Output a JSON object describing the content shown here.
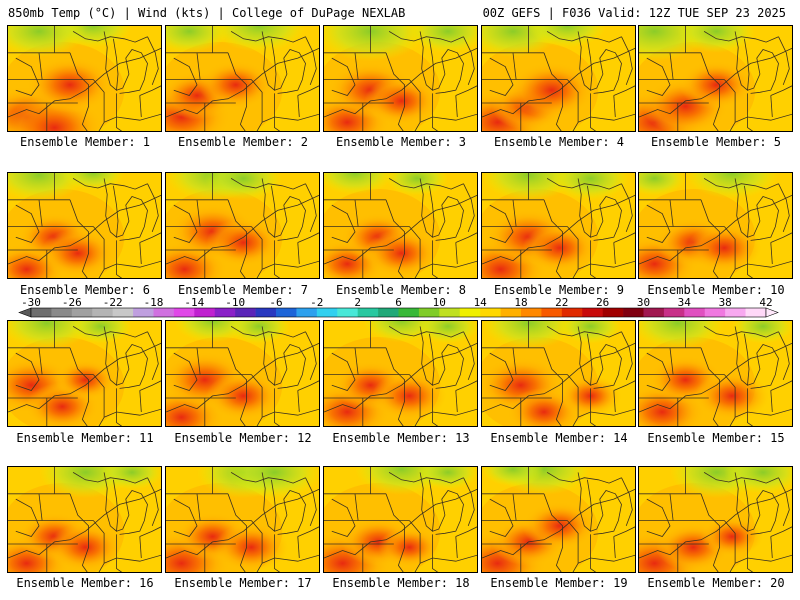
{
  "header": {
    "left": "850mb Temp (°C) | Wind (kts) | College of DuPage NEXLAB",
    "right": "00Z GEFS | F036 Valid: 12Z TUE SEP 23 2025"
  },
  "colorbar": {
    "tick_labels": [
      "-30",
      "-26",
      "-22",
      "-18",
      "-14",
      "-10",
      "-6",
      "-2",
      "2",
      "6",
      "10",
      "14",
      "18",
      "22",
      "26",
      "30",
      "34",
      "38",
      "42"
    ],
    "colors": [
      "#6e6e6e",
      "#8a8a8a",
      "#a0a0a0",
      "#b4b4b4",
      "#c8c8c8",
      "#bf9fdf",
      "#d070e0",
      "#e048e8",
      "#c020d0",
      "#8a20c8",
      "#5a24b8",
      "#2838c0",
      "#1c64d8",
      "#2ca0ee",
      "#30d0f0",
      "#48e8d8",
      "#28c8a0",
      "#20a878",
      "#38b838",
      "#80cc28",
      "#c0e020",
      "#f0f000",
      "#ffd800",
      "#ffb000",
      "#ff8800",
      "#f85a00",
      "#e02a00",
      "#c80a0a",
      "#a00000",
      "#800010",
      "#a01850",
      "#c83088",
      "#e050c0",
      "#f078e0",
      "#f8a8f0",
      "#ffd8f8"
    ]
  },
  "panels": [
    {
      "label": "Ensemble Member: 1",
      "warm": [
        [
          0.12,
          0.85,
          0.38
        ],
        [
          0.3,
          0.95,
          0.4
        ],
        [
          0.4,
          0.55,
          0.35
        ]
      ],
      "cool": [
        [
          0.55,
          0.0,
          0.25
        ],
        [
          0.2,
          0.05,
          0.3
        ]
      ]
    },
    {
      "label": "Ensemble Member: 2",
      "warm": [
        [
          0.1,
          0.85,
          0.4
        ],
        [
          0.2,
          0.65,
          0.3
        ],
        [
          0.45,
          0.55,
          0.3
        ]
      ],
      "cool": [
        [
          0.6,
          0.0,
          0.3
        ],
        [
          0.15,
          0.05,
          0.25
        ]
      ]
    },
    {
      "label": "Ensemble Member: 3",
      "warm": [
        [
          0.15,
          0.9,
          0.35
        ],
        [
          0.3,
          0.6,
          0.35
        ],
        [
          0.5,
          0.7,
          0.3
        ]
      ],
      "cool": [
        [
          0.3,
          0.05,
          0.35
        ],
        [
          0.8,
          0.05,
          0.25
        ]
      ]
    },
    {
      "label": "Ensemble Member: 4",
      "warm": [
        [
          0.1,
          0.9,
          0.4
        ],
        [
          0.3,
          0.75,
          0.3
        ],
        [
          0.45,
          0.6,
          0.35
        ]
      ],
      "cool": [
        [
          0.2,
          0.05,
          0.3
        ],
        [
          0.55,
          0.0,
          0.25
        ]
      ]
    },
    {
      "label": "Ensemble Member: 5",
      "warm": [
        [
          0.1,
          0.9,
          0.4
        ],
        [
          0.3,
          0.75,
          0.35
        ],
        [
          0.5,
          0.55,
          0.3
        ]
      ],
      "cool": [
        [
          0.1,
          0.05,
          0.35
        ],
        [
          0.5,
          0.05,
          0.25
        ]
      ]
    },
    {
      "label": "Ensemble Member: 6",
      "warm": [
        [
          0.12,
          0.9,
          0.32
        ],
        [
          0.3,
          0.6,
          0.3
        ],
        [
          0.45,
          0.75,
          0.3
        ]
      ],
      "cool": [
        [
          0.2,
          0.02,
          0.3
        ],
        [
          0.55,
          0.0,
          0.2
        ]
      ]
    },
    {
      "label": "Ensemble Member: 7",
      "warm": [
        [
          0.12,
          0.9,
          0.35
        ],
        [
          0.3,
          0.55,
          0.35
        ],
        [
          0.5,
          0.65,
          0.3
        ]
      ],
      "cool": [
        [
          0.3,
          0.02,
          0.3
        ],
        [
          0.5,
          0.05,
          0.25
        ]
      ]
    },
    {
      "label": "Ensemble Member: 8",
      "warm": [
        [
          0.15,
          0.85,
          0.3
        ],
        [
          0.35,
          0.6,
          0.3
        ],
        [
          0.5,
          0.75,
          0.3
        ]
      ],
      "cool": [
        [
          0.2,
          0.0,
          0.25
        ],
        [
          0.6,
          0.05,
          0.2
        ]
      ]
    },
    {
      "label": "Ensemble Member: 9",
      "warm": [
        [
          0.12,
          0.9,
          0.38
        ],
        [
          0.3,
          0.6,
          0.35
        ],
        [
          0.5,
          0.7,
          0.3
        ]
      ],
      "cool": [
        [
          0.3,
          0.02,
          0.3
        ],
        [
          0.7,
          0.05,
          0.25
        ]
      ]
    },
    {
      "label": "Ensemble Member: 10",
      "warm": [
        [
          0.1,
          0.85,
          0.35
        ],
        [
          0.35,
          0.65,
          0.3
        ],
        [
          0.55,
          0.7,
          0.3
        ]
      ],
      "cool": [
        [
          0.6,
          0.0,
          0.3
        ],
        [
          0.1,
          0.05,
          0.2
        ]
      ]
    },
    {
      "label": "Ensemble Member: 11",
      "warm": [
        [
          0.15,
          0.6,
          0.35
        ],
        [
          0.35,
          0.8,
          0.3
        ],
        [
          0.5,
          0.55,
          0.25
        ]
      ],
      "cool": [
        [
          0.25,
          0.02,
          0.3
        ],
        [
          0.6,
          0.05,
          0.2
        ]
      ]
    },
    {
      "label": "Ensemble Member: 12",
      "warm": [
        [
          0.1,
          0.9,
          0.35
        ],
        [
          0.25,
          0.55,
          0.35
        ],
        [
          0.5,
          0.7,
          0.3
        ]
      ],
      "cool": [
        [
          0.3,
          0.0,
          0.25
        ],
        [
          0.6,
          0.05,
          0.2
        ]
      ]
    },
    {
      "label": "Ensemble Member: 13",
      "warm": [
        [
          0.15,
          0.85,
          0.35
        ],
        [
          0.3,
          0.6,
          0.3
        ],
        [
          0.55,
          0.7,
          0.3
        ]
      ],
      "cool": [
        [
          0.5,
          0.0,
          0.25
        ],
        [
          0.8,
          0.05,
          0.2
        ]
      ]
    },
    {
      "label": "Ensemble Member: 14",
      "warm": [
        [
          0.25,
          0.6,
          0.35
        ],
        [
          0.4,
          0.85,
          0.3
        ],
        [
          0.7,
          0.7,
          0.25
        ]
      ],
      "cool": [
        [
          0.3,
          0.02,
          0.3
        ],
        [
          0.7,
          0.05,
          0.2
        ]
      ]
    },
    {
      "label": "Ensemble Member: 15",
      "warm": [
        [
          0.15,
          0.85,
          0.35
        ],
        [
          0.3,
          0.55,
          0.3
        ],
        [
          0.6,
          0.7,
          0.3
        ]
      ],
      "cool": [
        [
          0.25,
          0.02,
          0.3
        ],
        [
          0.8,
          0.05,
          0.2
        ]
      ]
    },
    {
      "label": "Ensemble Member: 16",
      "warm": [
        [
          0.12,
          0.9,
          0.35
        ],
        [
          0.3,
          0.65,
          0.3
        ],
        [
          0.5,
          0.75,
          0.3
        ]
      ],
      "cool": [
        [
          0.5,
          0.05,
          0.3
        ],
        [
          0.8,
          0.05,
          0.2
        ]
      ]
    },
    {
      "label": "Ensemble Member: 17",
      "warm": [
        [
          0.1,
          0.9,
          0.4
        ],
        [
          0.3,
          0.65,
          0.3
        ],
        [
          0.55,
          0.75,
          0.3
        ]
      ],
      "cool": [
        [
          0.5,
          0.05,
          0.3
        ],
        [
          0.7,
          0.05,
          0.3
        ]
      ]
    },
    {
      "label": "Ensemble Member: 18",
      "warm": [
        [
          0.12,
          0.9,
          0.4
        ],
        [
          0.35,
          0.7,
          0.3
        ],
        [
          0.55,
          0.75,
          0.25
        ]
      ],
      "cool": [
        [
          0.5,
          0.02,
          0.3
        ],
        [
          0.8,
          0.05,
          0.2
        ]
      ]
    },
    {
      "label": "Ensemble Member: 19",
      "warm": [
        [
          0.1,
          0.9,
          0.4
        ],
        [
          0.3,
          0.7,
          0.3
        ],
        [
          0.5,
          0.55,
          0.3
        ]
      ],
      "cool": [
        [
          0.4,
          0.02,
          0.3
        ],
        [
          0.2,
          0.02,
          0.2
        ]
      ]
    },
    {
      "label": "Ensemble Member: 20",
      "warm": [
        [
          0.1,
          0.9,
          0.4
        ],
        [
          0.35,
          0.75,
          0.3
        ],
        [
          0.6,
          0.65,
          0.25
        ]
      ],
      "cool": [
        [
          0.5,
          0.05,
          0.3
        ],
        [
          0.8,
          0.05,
          0.25
        ]
      ]
    }
  ]
}
